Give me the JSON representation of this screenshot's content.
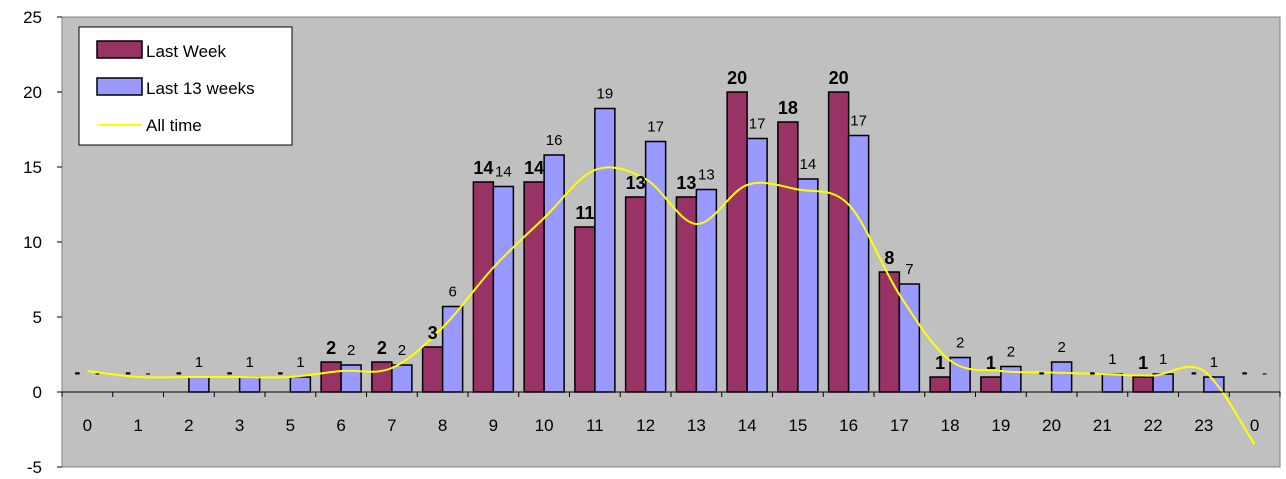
{
  "chart_data": {
    "type": "bar",
    "categories": [
      "0",
      "1",
      "2",
      "3",
      "5",
      "6",
      "7",
      "8",
      "9",
      "10",
      "11",
      "12",
      "13",
      "14",
      "15",
      "16",
      "17",
      "18",
      "19",
      "20",
      "21",
      "22",
      "23",
      "0"
    ],
    "ylim": [
      -5,
      25
    ],
    "yticks": [
      -5,
      0,
      5,
      10,
      15,
      20,
      25
    ],
    "grid": false,
    "legend_position": "top-left",
    "colors": {
      "plot_bg": "#c0c0c0",
      "last_week": "#993366",
      "last_13_weeks": "#9999ff",
      "all_time": "#ffff00"
    },
    "series": [
      {
        "name": "Last Week",
        "kind": "bar",
        "values": [
          0,
          0,
          0,
          0,
          0,
          2,
          2,
          3,
          14,
          14,
          11,
          13,
          13,
          20,
          18,
          20,
          8,
          1,
          1,
          0,
          0,
          1,
          0,
          0
        ],
        "labels": [
          "-",
          "-",
          "-",
          "-",
          "-",
          "2",
          "2",
          "3",
          "14",
          "14",
          "11",
          "13",
          "13",
          "20",
          "18",
          "20",
          "8",
          "1",
          "1",
          "-",
          "-",
          "1",
          "-",
          "-"
        ]
      },
      {
        "name": "Last 13 weeks",
        "kind": "bar",
        "values": [
          0,
          0,
          1,
          1,
          1,
          1.8,
          1.8,
          5.7,
          13.7,
          15.8,
          18.9,
          16.7,
          13.5,
          16.9,
          14.2,
          17.1,
          7.2,
          2.3,
          1.7,
          2.0,
          1.2,
          1.2,
          1.0,
          0
        ],
        "labels": [
          "-",
          "-",
          "1",
          "1",
          "1",
          "2",
          "2",
          "6",
          "14",
          "16",
          "19",
          "17",
          "13",
          "17",
          "14",
          "17",
          "7",
          "2",
          "2",
          "2",
          "1",
          "1",
          "1",
          "-"
        ]
      },
      {
        "name": "All time",
        "kind": "line",
        "values": [
          1.4,
          1.0,
          1.0,
          1.0,
          1.0,
          1.4,
          1.6,
          4.3,
          8.3,
          11.6,
          14.8,
          14.2,
          11.2,
          13.8,
          13.5,
          12.5,
          6.5,
          2.1,
          1.4,
          1.3,
          1.2,
          1.1,
          1.4,
          -3.5
        ]
      }
    ]
  }
}
